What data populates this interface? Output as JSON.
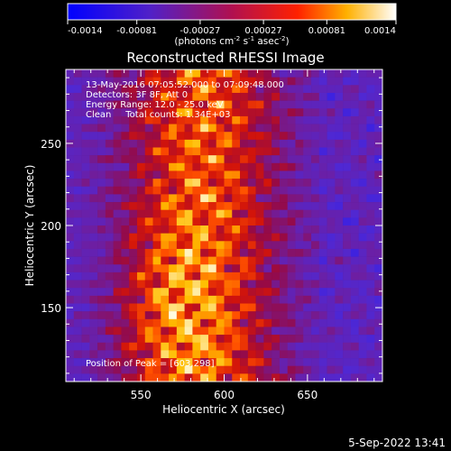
{
  "chart_data": {
    "type": "heatmap",
    "title": "Reconstructed RHESSI Image",
    "xlabel": "Heliocentric X (arcsec)",
    "ylabel": "Heliocentric Y (arcsec)",
    "xlim": [
      505,
      695
    ],
    "ylim": [
      105,
      295
    ],
    "x_ticks": [
      550,
      600,
      650
    ],
    "y_ticks": [
      150,
      200,
      250
    ],
    "colorbar": {
      "range": [
        -0.0014,
        0.0014
      ],
      "ticks": [
        "-0.0014",
        "-0.00081",
        "-0.00027",
        "0.00027",
        "0.00081",
        "0.0014"
      ],
      "unit_label": "(photons cm",
      "unit_exp1": "-2",
      "unit_mid": " s",
      "unit_exp2": "-1",
      "unit_mid2": " asec",
      "unit_exp3": "-2",
      "unit_close": ")"
    },
    "annotations": [
      "13-May-2016 07:05:52.000 to 07:09:48.000",
      "Detectors: 3F 8F, Att 0",
      "Energy Range: 12.0 - 25.0 keV",
      "Clean     Total counts: 1.34E+03"
    ],
    "peak_text": "Position of Peak = [603,298]",
    "grid": false,
    "colormap": "blue-purple-red-yellow-white",
    "grid_size": [
      40,
      40
    ]
  },
  "footer": {
    "timestamp": "5-Sep-2022 13:41"
  }
}
